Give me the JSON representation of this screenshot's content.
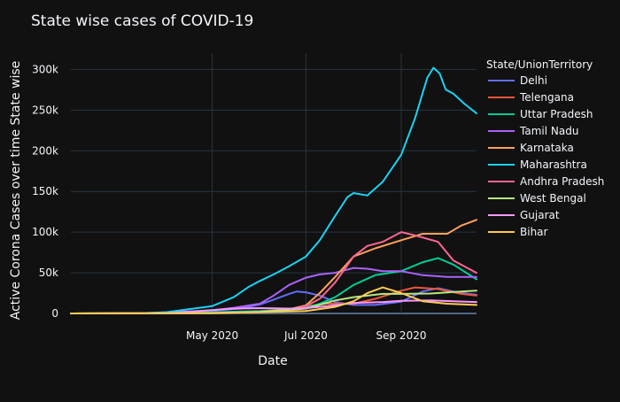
{
  "chart_data": {
    "type": "line",
    "title": "State wise cases of COVID-19",
    "xlabel": "Date",
    "ylabel": "Active Corona Cases over time State wise",
    "legend_title": "State/UnionTerritory",
    "legend_position": "right",
    "grid": true,
    "xlim": [
      "2020-01-30",
      "2020-10-20"
    ],
    "ylim": [
      0,
      320000
    ],
    "x_ticks": [
      {
        "date": "2020-05-01",
        "label": "May 2020"
      },
      {
        "date": "2020-07-01",
        "label": "Jul 2020"
      },
      {
        "date": "2020-09-01",
        "label": "Sep 2020"
      }
    ],
    "y_ticks": [
      {
        "value": 0,
        "label": "0"
      },
      {
        "value": 50000,
        "label": "50k"
      },
      {
        "value": 100000,
        "label": "100k"
      },
      {
        "value": 150000,
        "label": "150k"
      },
      {
        "value": 200000,
        "label": "200k"
      },
      {
        "value": 250000,
        "label": "250k"
      },
      {
        "value": 300000,
        "label": "300k"
      }
    ],
    "series": [
      {
        "name": "Delhi",
        "color": "#636efa",
        "points": [
          [
            "2020-01-30",
            0
          ],
          [
            "2020-03-15",
            200
          ],
          [
            "2020-04-01",
            1500
          ],
          [
            "2020-05-01",
            3500
          ],
          [
            "2020-05-20",
            6000
          ],
          [
            "2020-06-01",
            11000
          ],
          [
            "2020-06-10",
            17000
          ],
          [
            "2020-06-20",
            24000
          ],
          [
            "2020-06-25",
            27000
          ],
          [
            "2020-07-01",
            26000
          ],
          [
            "2020-07-10",
            22000
          ],
          [
            "2020-07-20",
            14000
          ],
          [
            "2020-08-01",
            10500
          ],
          [
            "2020-08-15",
            10500
          ],
          [
            "2020-09-01",
            14500
          ],
          [
            "2020-09-15",
            27000
          ],
          [
            "2020-09-25",
            31000
          ],
          [
            "2020-10-05",
            27000
          ],
          [
            "2020-10-15",
            24000
          ],
          [
            "2020-10-20",
            23000
          ]
        ]
      },
      {
        "name": "Telengana",
        "color": "#ef553b",
        "points": [
          [
            "2020-01-30",
            0
          ],
          [
            "2020-04-01",
            200
          ],
          [
            "2020-05-01",
            1000
          ],
          [
            "2020-06-01",
            2500
          ],
          [
            "2020-06-20",
            5000
          ],
          [
            "2020-07-01",
            9000
          ],
          [
            "2020-07-15",
            12000
          ],
          [
            "2020-08-01",
            12000
          ],
          [
            "2020-08-15",
            18000
          ],
          [
            "2020-09-01",
            28000
          ],
          [
            "2020-09-10",
            32000
          ],
          [
            "2020-09-25",
            30000
          ],
          [
            "2020-10-10",
            24000
          ],
          [
            "2020-10-20",
            22000
          ]
        ]
      },
      {
        "name": "Uttar Pradesh",
        "color": "#00cc96",
        "points": [
          [
            "2020-01-30",
            0
          ],
          [
            "2020-04-01",
            300
          ],
          [
            "2020-05-01",
            1500
          ],
          [
            "2020-06-01",
            3000
          ],
          [
            "2020-06-20",
            5000
          ],
          [
            "2020-07-01",
            7000
          ],
          [
            "2020-07-10",
            12000
          ],
          [
            "2020-07-20",
            20000
          ],
          [
            "2020-08-01",
            35000
          ],
          [
            "2020-08-15",
            47000
          ],
          [
            "2020-09-01",
            52000
          ],
          [
            "2020-09-15",
            63000
          ],
          [
            "2020-09-25",
            68000
          ],
          [
            "2020-10-05",
            60000
          ],
          [
            "2020-10-15",
            48000
          ],
          [
            "2020-10-20",
            42000
          ]
        ]
      },
      {
        "name": "Tamil Nadu",
        "color": "#ab63fa",
        "points": [
          [
            "2020-01-30",
            0
          ],
          [
            "2020-04-01",
            500
          ],
          [
            "2020-05-01",
            4000
          ],
          [
            "2020-05-15",
            7000
          ],
          [
            "2020-06-01",
            12000
          ],
          [
            "2020-06-10",
            22000
          ],
          [
            "2020-06-20",
            35000
          ],
          [
            "2020-07-01",
            44000
          ],
          [
            "2020-07-10",
            48000
          ],
          [
            "2020-07-20",
            50000
          ],
          [
            "2020-08-01",
            56000
          ],
          [
            "2020-08-10",
            55000
          ],
          [
            "2020-08-20",
            52000
          ],
          [
            "2020-09-01",
            52000
          ],
          [
            "2020-09-15",
            47000
          ],
          [
            "2020-10-01",
            45000
          ],
          [
            "2020-10-20",
            45000
          ]
        ]
      },
      {
        "name": "Karnataka",
        "color": "#ffa15a",
        "points": [
          [
            "2020-01-30",
            0
          ],
          [
            "2020-05-01",
            500
          ],
          [
            "2020-06-01",
            2000
          ],
          [
            "2020-06-20",
            5000
          ],
          [
            "2020-07-01",
            10000
          ],
          [
            "2020-07-10",
            25000
          ],
          [
            "2020-07-20",
            45000
          ],
          [
            "2020-08-01",
            70000
          ],
          [
            "2020-08-15",
            80000
          ],
          [
            "2020-09-01",
            90000
          ],
          [
            "2020-09-15",
            98000
          ],
          [
            "2020-10-01",
            98000
          ],
          [
            "2020-10-10",
            108000
          ],
          [
            "2020-10-20",
            115000
          ]
        ]
      },
      {
        "name": "Maharashtra",
        "color": "#19d3f3",
        "points": [
          [
            "2020-01-30",
            0
          ],
          [
            "2020-03-15",
            100
          ],
          [
            "2020-04-01",
            1500
          ],
          [
            "2020-04-15",
            5000
          ],
          [
            "2020-05-01",
            9000
          ],
          [
            "2020-05-15",
            20000
          ],
          [
            "2020-05-25",
            33000
          ],
          [
            "2020-06-01",
            40000
          ],
          [
            "2020-06-10",
            48000
          ],
          [
            "2020-06-20",
            58000
          ],
          [
            "2020-07-01",
            70000
          ],
          [
            "2020-07-10",
            90000
          ],
          [
            "2020-07-20",
            120000
          ],
          [
            "2020-07-28",
            143000
          ],
          [
            "2020-08-01",
            148000
          ],
          [
            "2020-08-10",
            145000
          ],
          [
            "2020-08-20",
            162000
          ],
          [
            "2020-09-01",
            195000
          ],
          [
            "2020-09-10",
            240000
          ],
          [
            "2020-09-18",
            290000
          ],
          [
            "2020-09-22",
            302000
          ],
          [
            "2020-09-26",
            295000
          ],
          [
            "2020-09-30",
            275000
          ],
          [
            "2020-10-05",
            270000
          ],
          [
            "2020-10-12",
            258000
          ],
          [
            "2020-10-20",
            246000
          ]
        ]
      },
      {
        "name": "Andhra Pradesh",
        "color": "#ff6692",
        "points": [
          [
            "2020-01-30",
            0
          ],
          [
            "2020-05-01",
            500
          ],
          [
            "2020-06-01",
            1500
          ],
          [
            "2020-06-20",
            4000
          ],
          [
            "2020-07-01",
            9000
          ],
          [
            "2020-07-10",
            18000
          ],
          [
            "2020-07-20",
            38000
          ],
          [
            "2020-08-01",
            70000
          ],
          [
            "2020-08-10",
            83000
          ],
          [
            "2020-08-20",
            88000
          ],
          [
            "2020-09-01",
            100000
          ],
          [
            "2020-09-10",
            96000
          ],
          [
            "2020-09-25",
            88000
          ],
          [
            "2020-10-05",
            65000
          ],
          [
            "2020-10-15",
            55000
          ],
          [
            "2020-10-20",
            50000
          ]
        ]
      },
      {
        "name": "West Bengal",
        "color": "#b6e880",
        "points": [
          [
            "2020-01-30",
            0
          ],
          [
            "2020-05-01",
            500
          ],
          [
            "2020-06-01",
            2000
          ],
          [
            "2020-07-01",
            6000
          ],
          [
            "2020-07-20",
            16000
          ],
          [
            "2020-08-01",
            20000
          ],
          [
            "2020-08-20",
            24000
          ],
          [
            "2020-09-01",
            24000
          ],
          [
            "2020-09-20",
            24500
          ],
          [
            "2020-10-10",
            27000
          ],
          [
            "2020-10-20",
            28000
          ]
        ]
      },
      {
        "name": "Gujarat",
        "color": "#ff97ff",
        "points": [
          [
            "2020-01-30",
            0
          ],
          [
            "2020-04-01",
            200
          ],
          [
            "2020-05-01",
            4000
          ],
          [
            "2020-05-15",
            6000
          ],
          [
            "2020-06-01",
            6500
          ],
          [
            "2020-06-20",
            6000
          ],
          [
            "2020-07-01",
            6500
          ],
          [
            "2020-07-15",
            9000
          ],
          [
            "2020-08-01",
            13000
          ],
          [
            "2020-08-20",
            14000
          ],
          [
            "2020-09-01",
            15500
          ],
          [
            "2020-09-20",
            16000
          ],
          [
            "2020-10-05",
            15000
          ],
          [
            "2020-10-20",
            14000
          ]
        ]
      },
      {
        "name": "Bihar",
        "color": "#fecb52",
        "points": [
          [
            "2020-01-30",
            0
          ],
          [
            "2020-05-01",
            300
          ],
          [
            "2020-06-01",
            1500
          ],
          [
            "2020-07-01",
            3000
          ],
          [
            "2020-07-20",
            8000
          ],
          [
            "2020-08-01",
            15000
          ],
          [
            "2020-08-10",
            25000
          ],
          [
            "2020-08-20",
            32000
          ],
          [
            "2020-09-01",
            25000
          ],
          [
            "2020-09-15",
            15000
          ],
          [
            "2020-10-01",
            12000
          ],
          [
            "2020-10-20",
            10500
          ]
        ]
      }
    ]
  }
}
